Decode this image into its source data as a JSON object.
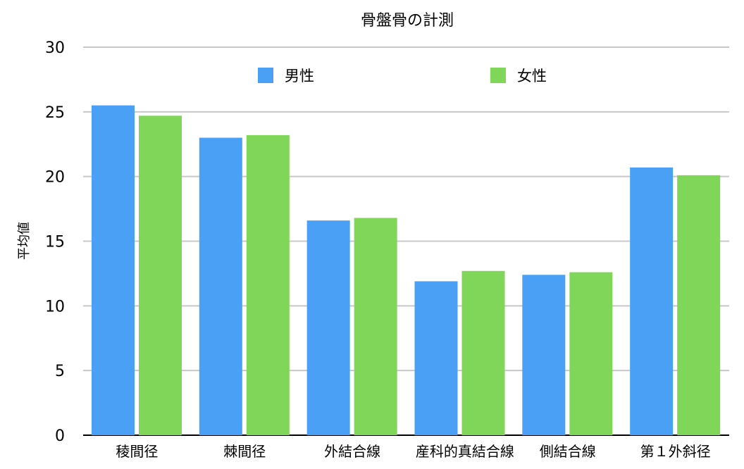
{
  "chart_data": {
    "type": "bar",
    "title": "骨盤骨の計測",
    "xlabel": "",
    "ylabel": "平均値",
    "ylim": [
      0,
      30
    ],
    "yticks": [
      0,
      5,
      10,
      15,
      20,
      25,
      30
    ],
    "grid": true,
    "legend_position": "top",
    "categories": [
      "稜間径",
      "棘間径",
      "外結合線",
      "産科的真結合線",
      "側結合線",
      "第１外斜径"
    ],
    "series": [
      {
        "name": "男性",
        "color": "#4aa0f5",
        "values": [
          25.5,
          23.0,
          16.6,
          11.9,
          12.4,
          20.7
        ]
      },
      {
        "name": "女性",
        "color": "#80d658",
        "values": [
          24.7,
          23.2,
          16.8,
          12.7,
          12.6,
          20.1
        ]
      }
    ]
  }
}
